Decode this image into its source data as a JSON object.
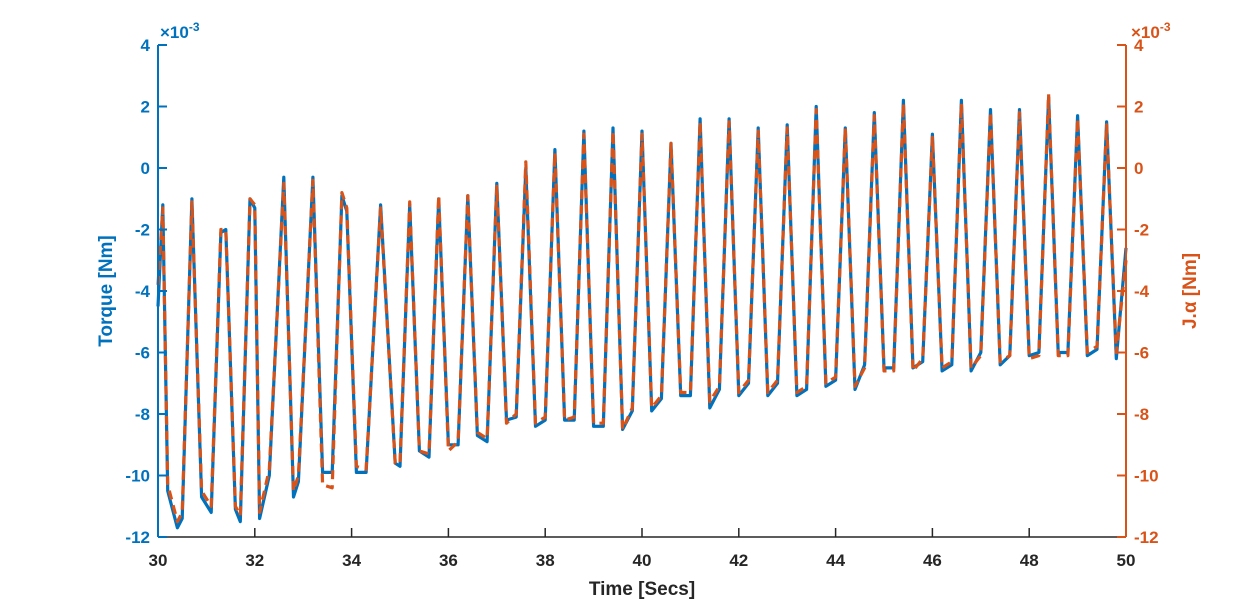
{
  "chart_data": {
    "type": "line",
    "title": "",
    "xlabel": "Time [Secs]",
    "ylabel_left": "Torque [Nm]",
    "ylabel_right": "J.α [Nm]",
    "y_exponent_label": "×10^-3",
    "xlim": [
      30,
      50
    ],
    "ylim_left": [
      -12,
      4
    ],
    "ylim_right": [
      -12,
      4
    ],
    "x_ticks": [
      30,
      32,
      34,
      36,
      38,
      40,
      42,
      44,
      46,
      48,
      50
    ],
    "y_ticks_left": [
      -12,
      -10,
      -8,
      -6,
      -4,
      -2,
      0,
      2,
      4
    ],
    "y_ticks_right": [
      -12,
      -10,
      -8,
      -6,
      -4,
      -2,
      0,
      2,
      4
    ],
    "grid": false,
    "legend": null,
    "colors": {
      "left_axis": "#0072BD",
      "right_axis": "#D95319",
      "x_axis": "#262626"
    },
    "series": [
      {
        "name": "Torque [Nm]",
        "axis": "left",
        "style": "solid",
        "color": "#0072BD",
        "x": [
          30.0,
          30.1,
          30.2,
          30.4,
          30.5,
          30.7,
          30.9,
          31.1,
          31.3,
          31.4,
          31.6,
          31.7,
          31.9,
          32.0,
          32.1,
          32.3,
          32.6,
          32.8,
          32.9,
          33.2,
          33.4,
          33.6,
          33.8,
          33.9,
          34.1,
          34.3,
          34.6,
          34.9,
          35.0,
          35.2,
          35.4,
          35.6,
          35.8,
          36.0,
          36.2,
          36.4,
          36.6,
          36.8,
          37.0,
          37.2,
          37.4,
          37.6,
          37.8,
          38.0,
          38.2,
          38.4,
          38.6,
          38.8,
          39.0,
          39.2,
          39.4,
          39.6,
          39.8,
          40.0,
          40.2,
          40.4,
          40.6,
          40.8,
          41.0,
          41.2,
          41.4,
          41.6,
          41.8,
          42.0,
          42.2,
          42.4,
          42.6,
          42.8,
          43.0,
          43.2,
          43.4,
          43.6,
          43.8,
          44.0,
          44.2,
          44.4,
          44.6,
          44.8,
          45.0,
          45.2,
          45.4,
          45.6,
          45.8,
          46.0,
          46.2,
          46.4,
          46.6,
          46.8,
          47.0,
          47.2,
          47.4,
          47.6,
          47.8,
          48.0,
          48.2,
          48.4,
          48.6,
          48.8,
          49.0,
          49.2,
          49.4,
          49.6,
          49.8,
          50.0
        ],
        "y": [
          -4.5,
          -1.2,
          -10.5,
          -11.7,
          -11.4,
          -1.0,
          -10.7,
          -11.2,
          -2.1,
          -2.0,
          -11.1,
          -11.5,
          -1.0,
          -1.3,
          -11.4,
          -10.0,
          -0.3,
          -10.7,
          -10.2,
          -0.3,
          -9.9,
          -9.9,
          -0.9,
          -1.4,
          -9.9,
          -9.9,
          -1.2,
          -9.6,
          -9.7,
          -1.2,
          -9.2,
          -9.4,
          -1.0,
          -9.0,
          -9.0,
          -0.9,
          -8.7,
          -8.9,
          -0.5,
          -8.2,
          -8.1,
          0.0,
          -8.4,
          -8.2,
          0.6,
          -8.2,
          -8.2,
          1.2,
          -8.4,
          -8.4,
          1.3,
          -8.5,
          -7.9,
          1.2,
          -7.9,
          -7.5,
          0.8,
          -7.4,
          -7.4,
          1.6,
          -7.8,
          -7.2,
          1.6,
          -7.4,
          -7.0,
          1.3,
          -7.4,
          -7.0,
          1.4,
          -7.4,
          -7.2,
          2.0,
          -7.1,
          -6.9,
          1.3,
          -7.2,
          -6.4,
          1.8,
          -6.5,
          -6.5,
          2.2,
          -6.5,
          -6.3,
          1.1,
          -6.6,
          -6.4,
          2.2,
          -6.6,
          -6.0,
          1.9,
          -6.4,
          -6.1,
          1.9,
          -6.1,
          -6.0,
          2.3,
          -6.0,
          -6.0,
          1.7,
          -6.1,
          -5.9,
          1.5,
          -6.2,
          -2.6
        ]
      },
      {
        "name": "J.α [Nm]",
        "axis": "right",
        "style": "dashed",
        "color": "#D95319",
        "x": [
          30.0,
          30.1,
          30.2,
          30.4,
          30.5,
          30.7,
          30.9,
          31.1,
          31.3,
          31.4,
          31.6,
          31.7,
          31.9,
          32.0,
          32.1,
          32.3,
          32.6,
          32.8,
          32.9,
          33.2,
          33.4,
          33.6,
          33.8,
          33.9,
          34.1,
          34.3,
          34.6,
          34.9,
          35.0,
          35.2,
          35.4,
          35.6,
          35.8,
          36.0,
          36.2,
          36.4,
          36.6,
          36.8,
          37.0,
          37.2,
          37.4,
          37.6,
          37.8,
          38.0,
          38.2,
          38.4,
          38.6,
          38.8,
          39.0,
          39.2,
          39.4,
          39.6,
          39.8,
          40.0,
          40.2,
          40.4,
          40.6,
          40.8,
          41.0,
          41.2,
          41.4,
          41.6,
          41.8,
          42.0,
          42.2,
          42.4,
          42.6,
          42.8,
          43.0,
          43.2,
          43.4,
          43.6,
          43.8,
          44.0,
          44.2,
          44.4,
          44.6,
          44.8,
          45.0,
          45.2,
          45.4,
          45.6,
          45.8,
          46.0,
          46.2,
          46.4,
          46.6,
          46.8,
          47.0,
          47.2,
          47.4,
          47.6,
          47.8,
          48.0,
          48.2,
          48.4,
          48.6,
          48.8,
          49.0,
          49.2,
          49.4,
          49.6,
          49.8,
          50.0
        ],
        "y": [
          -3.8,
          -1.3,
          -10.3,
          -11.5,
          -11.2,
          -1.1,
          -10.5,
          -11.0,
          -2.0,
          -2.0,
          -11.0,
          -11.3,
          -1.0,
          -1.2,
          -11.2,
          -9.8,
          -0.5,
          -10.5,
          -10.0,
          -0.4,
          -10.3,
          -10.4,
          -0.8,
          -1.3,
          -9.7,
          -9.8,
          -1.3,
          -9.6,
          -9.6,
          -1.1,
          -9.2,
          -9.3,
          -0.9,
          -9.2,
          -8.9,
          -0.9,
          -8.6,
          -8.8,
          -0.6,
          -8.3,
          -8.0,
          0.2,
          -8.3,
          -8.1,
          0.5,
          -8.2,
          -8.1,
          1.1,
          -8.3,
          -8.3,
          1.2,
          -8.5,
          -7.8,
          1.1,
          -7.8,
          -7.4,
          0.8,
          -7.3,
          -7.3,
          1.5,
          -7.6,
          -7.1,
          1.5,
          -7.3,
          -6.9,
          1.2,
          -7.3,
          -6.9,
          1.3,
          -7.3,
          -7.1,
          1.9,
          -7.0,
          -6.8,
          1.3,
          -7.1,
          -6.5,
          1.7,
          -6.6,
          -6.6,
          2.1,
          -6.6,
          -6.2,
          1.0,
          -6.5,
          -6.3,
          2.1,
          -6.5,
          -6.1,
          1.8,
          -6.3,
          -6.1,
          1.8,
          -6.2,
          -6.1,
          2.4,
          -6.1,
          -6.1,
          1.6,
          -6.0,
          -5.8,
          1.4,
          -6.0,
          -3.0
        ]
      }
    ]
  }
}
